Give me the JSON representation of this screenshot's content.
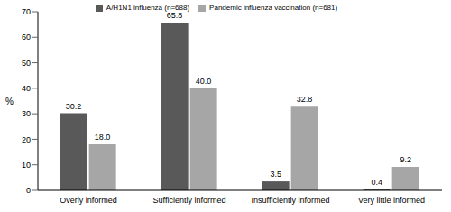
{
  "chart_data": {
    "type": "bar",
    "y_label": "%",
    "categories": [
      "Overly informed",
      "Sufficiently informed",
      "Insufficiently informed",
      "Very little informed"
    ],
    "series": [
      {
        "name": "A/H1N1 influenza (n=688)",
        "color": "#595959",
        "values": [
          30.2,
          65.8,
          3.5,
          0.4
        ],
        "value_labels": [
          "30.2",
          "65.8",
          "3.5",
          "0.4"
        ]
      },
      {
        "name": "Pandemic influenza vaccination (n=681)",
        "color": "#a6a6a6",
        "values": [
          18.0,
          40.0,
          32.8,
          9.2
        ],
        "value_labels": [
          "18.0",
          "40.0",
          "32.8",
          "9.2"
        ]
      }
    ],
    "ylim": [
      0,
      70
    ],
    "yticks": [
      0,
      10,
      20,
      30,
      40,
      50,
      60,
      70
    ],
    "grid": false,
    "legend": "top",
    "data_labels": true
  }
}
